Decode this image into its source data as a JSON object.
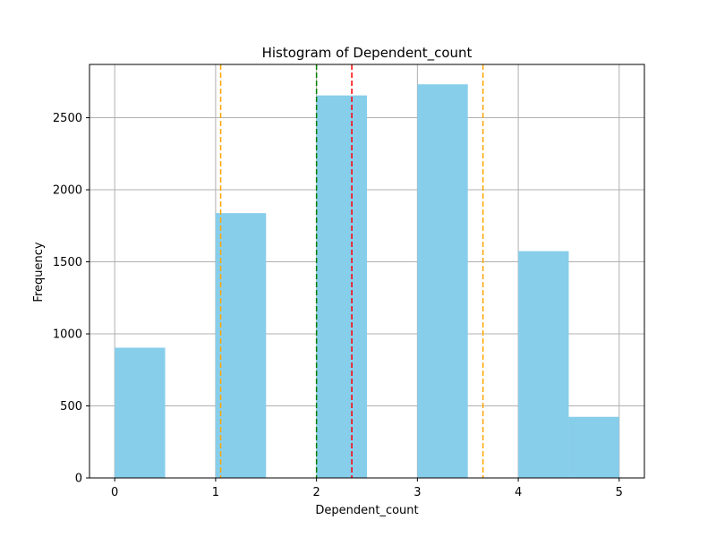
{
  "chart_data": {
    "type": "bar",
    "title": "Histogram of Dependent_count",
    "xlabel": "Dependent_count",
    "ylabel": "Frequency",
    "xlim": [
      -0.25,
      5.25
    ],
    "ylim": [
      0,
      2870
    ],
    "grid": true,
    "bar_color": "#87ceeb",
    "bins": [
      {
        "start": 0.0,
        "end": 0.5,
        "value": 904
      },
      {
        "start": 0.5,
        "end": 1.0,
        "value": 0
      },
      {
        "start": 1.0,
        "end": 1.5,
        "value": 1838
      },
      {
        "start": 1.5,
        "end": 2.0,
        "value": 0
      },
      {
        "start": 2.0,
        "end": 2.5,
        "value": 2655
      },
      {
        "start": 2.5,
        "end": 3.0,
        "value": 0
      },
      {
        "start": 3.0,
        "end": 3.5,
        "value": 2732
      },
      {
        "start": 3.5,
        "end": 4.0,
        "value": 0
      },
      {
        "start": 4.0,
        "end": 4.5,
        "value": 1574
      },
      {
        "start": 4.5,
        "end": 5.0,
        "value": 424
      }
    ],
    "x_ticks": [
      0,
      1,
      2,
      3,
      4,
      5
    ],
    "x_tick_labels": [
      "0",
      "1",
      "2",
      "3",
      "4",
      "5"
    ],
    "y_ticks": [
      0,
      500,
      1000,
      1500,
      2000,
      2500
    ],
    "y_tick_labels": [
      "0",
      "500",
      "1000",
      "1500",
      "2000",
      "2500"
    ],
    "reference_lines": [
      {
        "x": 1.05,
        "color": "#ffa500",
        "style": "dashed"
      },
      {
        "x": 2.0,
        "color": "#008000",
        "style": "dashed"
      },
      {
        "x": 2.35,
        "color": "#ff0000",
        "style": "dashed"
      },
      {
        "x": 3.65,
        "color": "#ffa500",
        "style": "dashed"
      }
    ]
  }
}
